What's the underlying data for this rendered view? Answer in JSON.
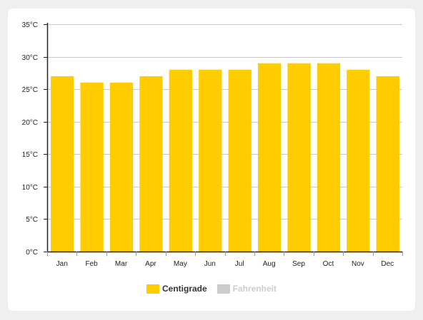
{
  "chart_data": {
    "type": "bar",
    "categories": [
      "Jan",
      "Feb",
      "Mar",
      "Apr",
      "May",
      "Jun",
      "Jul",
      "Aug",
      "Sep",
      "Oct",
      "Nov",
      "Dec"
    ],
    "series": [
      {
        "name": "Centigrade",
        "values": [
          27,
          26,
          26,
          27,
          28,
          28,
          28,
          29,
          29,
          29,
          28,
          27
        ]
      }
    ],
    "ylim": [
      0,
      35
    ],
    "yticks": [
      0,
      5,
      10,
      15,
      20,
      25,
      30,
      35
    ],
    "ytick_labels": [
      "0°C",
      "5°C",
      "10°C",
      "15°C",
      "20°C",
      "25°C",
      "30°C",
      "35°C"
    ],
    "grid": true,
    "legend_position": "bottom-center"
  },
  "legend": {
    "items": [
      {
        "label": "Centigrade",
        "color": "#ffcc00",
        "text_color": "#333333"
      },
      {
        "label": "Fahrenheit",
        "color": "#cccccc",
        "text_color": "#cccccc"
      }
    ]
  },
  "colors": {
    "bar": "#ffcc00",
    "grid": "#c8c8c8",
    "axis": "#222222"
  }
}
